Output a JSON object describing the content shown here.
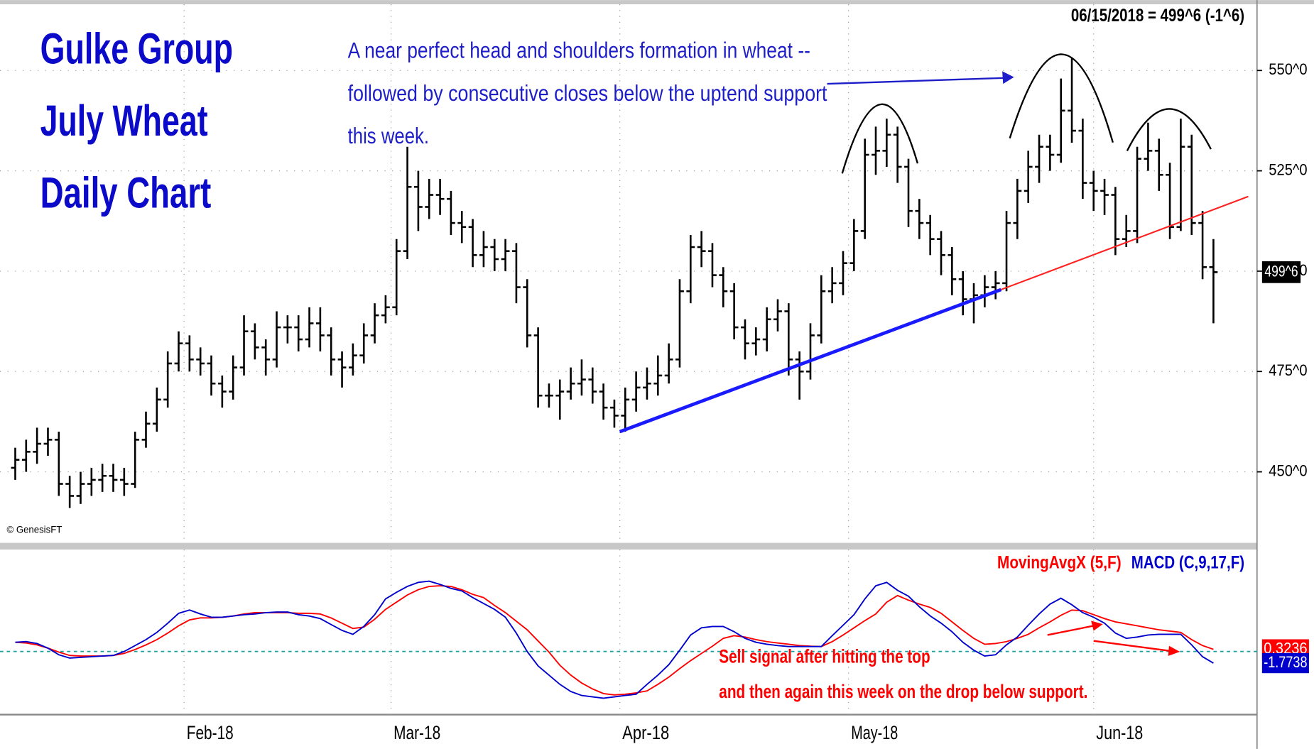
{
  "chart_data": [
    {
      "type": "ohlc",
      "title": [
        "Gulke Group",
        "July Wheat",
        "Daily Chart"
      ],
      "header": "06/15/2018 = 499^6 (-1^6)",
      "annotation": [
        "A near perfect head and shoulders formation in wheat --",
        "followed by consecutive closes below the uptend support",
        "this week."
      ],
      "credit": "© GenesisFT",
      "color": "#000000",
      "xlim": [
        -1.4,
        114
      ],
      "ylim": [
        432.3,
        566.5
      ],
      "yticks": [
        {
          "value": 450,
          "label": "450^0"
        },
        {
          "value": 475,
          "label": "475^0"
        },
        {
          "value": 500,
          "label": "500^0"
        },
        {
          "value": 525,
          "label": "525^0"
        },
        {
          "value": 550,
          "label": "550^0"
        }
      ],
      "grid": true,
      "last": {
        "value": 499.75,
        "label": "499^6"
      },
      "open": [
        451,
        453,
        455,
        457,
        458,
        447,
        444,
        447,
        448,
        449,
        448,
        447,
        458,
        462,
        468,
        477,
        482,
        478,
        477,
        472,
        470,
        476,
        485,
        481,
        478,
        486,
        486,
        483,
        487,
        484,
        478,
        476,
        479,
        484,
        489,
        491,
        505,
        521,
        516,
        519,
        518,
        512,
        511,
        504,
        506,
        503,
        505,
        496,
        484,
        469,
        469,
        470,
        472,
        473,
        470,
        466,
        464,
        468,
        471,
        472,
        474,
        478,
        495,
        506,
        505,
        499,
        495,
        486,
        482,
        483,
        488,
        490,
        478,
        475,
        484,
        495,
        497,
        502,
        510,
        529,
        530,
        534,
        526,
        515,
        512,
        508,
        504,
        498,
        493,
        494,
        496,
        497,
        512,
        520,
        526,
        531,
        529,
        540,
        535,
        522,
        520,
        519,
        508,
        510,
        528,
        530,
        524,
        511,
        531,
        512,
        501
      ],
      "high": [
        456,
        458,
        461,
        461,
        460,
        449,
        450,
        451,
        452,
        452,
        451,
        460,
        465,
        471,
        480,
        485,
        484,
        481,
        479,
        474,
        479,
        489,
        487,
        483,
        490,
        489,
        489,
        491,
        491,
        486,
        480,
        482,
        487,
        492,
        494,
        508,
        531,
        525,
        523,
        523,
        520,
        515,
        513,
        510,
        508,
        508,
        507,
        498,
        486,
        472,
        473,
        476,
        478,
        476,
        472,
        468,
        471,
        475,
        476,
        479,
        482,
        498,
        509,
        510,
        507,
        501,
        497,
        488,
        486,
        491,
        493,
        492,
        480,
        487,
        499,
        501,
        505,
        513,
        533,
        536,
        538,
        536,
        528,
        518,
        514,
        510,
        506,
        500,
        497,
        499,
        500,
        515,
        523,
        530,
        534,
        534,
        548,
        553,
        538,
        525,
        523,
        521,
        514,
        531,
        537,
        533,
        527,
        538,
        534,
        515,
        508
      ],
      "low": [
        448,
        450,
        452,
        454,
        444,
        441,
        442,
        444,
        445,
        445,
        444,
        446,
        456,
        460,
        466,
        475,
        475,
        474,
        469,
        466,
        468,
        474,
        478,
        474,
        476,
        482,
        480,
        481,
        480,
        474,
        471,
        474,
        477,
        482,
        487,
        489,
        503,
        510,
        513,
        514,
        509,
        507,
        501,
        501,
        500,
        500,
        492,
        481,
        466,
        466,
        463,
        468,
        469,
        467,
        463,
        461,
        460,
        465,
        468,
        469,
        472,
        476,
        492,
        501,
        496,
        491,
        483,
        478,
        479,
        480,
        485,
        474,
        468,
        473,
        482,
        492,
        494,
        500,
        508,
        524,
        526,
        522,
        511,
        508,
        504,
        499,
        494,
        489,
        487,
        491,
        493,
        495,
        508,
        517,
        522,
        525,
        527,
        532,
        518,
        515,
        514,
        504,
        506,
        507,
        525,
        520,
        508,
        510,
        509,
        498,
        487
      ],
      "close": [
        453,
        455,
        457,
        458,
        447,
        444,
        447,
        448,
        449,
        448,
        447,
        458,
        462,
        468,
        477,
        482,
        478,
        477,
        472,
        470,
        476,
        485,
        481,
        478,
        486,
        486,
        483,
        487,
        484,
        478,
        476,
        479,
        484,
        489,
        491,
        505,
        521,
        516,
        519,
        518,
        512,
        511,
        504,
        506,
        503,
        505,
        496,
        484,
        469,
        469,
        470,
        472,
        473,
        470,
        466,
        464,
        468,
        471,
        472,
        474,
        478,
        495,
        506,
        505,
        499,
        495,
        486,
        482,
        483,
        488,
        490,
        478,
        475,
        484,
        495,
        497,
        502,
        510,
        529,
        530,
        534,
        526,
        515,
        512,
        508,
        504,
        498,
        493,
        494,
        496,
        497,
        512,
        520,
        526,
        531,
        529,
        540,
        535,
        522,
        520,
        519,
        508,
        510,
        528,
        530,
        524,
        511,
        531,
        512,
        501,
        499.75
      ],
      "trendlines": [
        {
          "color": "#1a1aff",
          "points": [
            [
              55.5,
              460
            ],
            [
              90.5,
              495.4
            ]
          ]
        },
        {
          "color": "#ff2020",
          "points": [
            [
              90.5,
              495.4
            ],
            [
              113.2,
              518.6
            ]
          ]
        }
      ]
    },
    {
      "type": "line",
      "legend": [
        "MovingAvgX (5,F)",
        "MACD (C,9,17,F)"
      ],
      "notes": [
        "Sell signal after hitting the top",
        "and then again this week on the drop below support."
      ],
      "xlim": [
        -1.4,
        114
      ],
      "ylim": [
        -9.6,
        15.5
      ],
      "zero": 0,
      "xticks": [
        {
          "value": 15.5,
          "label": "Feb-18"
        },
        {
          "value": 34.5,
          "label": "Mar-18"
        },
        {
          "value": 55.5,
          "label": "Apr-18"
        },
        {
          "value": 76.5,
          "label": "May-18"
        },
        {
          "value": 99,
          "label": "Jun-18"
        }
      ],
      "series": [
        {
          "name": "MovingAvgX (5,F)",
          "color": "#ff0000",
          "end_label": "0.3236",
          "values": [
            1.4,
            1.3,
            1.0,
            0.5,
            -0.1,
            -0.6,
            -0.7,
            -0.7,
            -0.7,
            -0.6,
            -0.3,
            0.3,
            1.0,
            1.8,
            2.8,
            3.9,
            4.8,
            5.1,
            5.1,
            5.2,
            5.4,
            5.7,
            5.9,
            5.9,
            5.9,
            5.9,
            5.8,
            5.8,
            5.7,
            5.1,
            4.3,
            3.5,
            3.7,
            4.9,
            6.4,
            7.5,
            8.6,
            9.4,
            9.9,
            10.0,
            9.9,
            9.4,
            8.7,
            8.2,
            7.0,
            5.9,
            4.6,
            3.3,
            1.6,
            -0.1,
            -2.1,
            -3.6,
            -4.8,
            -5.7,
            -6.4,
            -6.6,
            -6.5,
            -6.3,
            -6.0,
            -5.0,
            -3.9,
            -2.6,
            -1.4,
            -0.3,
            0.8,
            2.0,
            2.4,
            2.2,
            1.8,
            1.5,
            1.3,
            1.1,
            0.9,
            0.8,
            0.75,
            1.5,
            2.5,
            3.6,
            4.7,
            5.7,
            7.5,
            8.5,
            7.8,
            7.2,
            6.7,
            5.8,
            4.5,
            3.2,
            2.0,
            1.1,
            1.2,
            1.5,
            2.0,
            2.6,
            3.6,
            4.5,
            5.5,
            6.3,
            6.2,
            5.6,
            5.0,
            4.5,
            4.2,
            3.9,
            3.6,
            3.3,
            3.1,
            2.9,
            1.8,
            0.9,
            0.3236
          ]
        },
        {
          "name": "MACD (C,9,17,F)",
          "color": "#0000cc",
          "end_label": "-1.7738",
          "values": [
            1.4,
            1.5,
            1.2,
            0.5,
            -0.5,
            -1.0,
            -0.9,
            -0.8,
            -0.7,
            -0.6,
            0.0,
            0.9,
            1.8,
            2.9,
            4.3,
            5.8,
            6.3,
            5.7,
            5.2,
            5.2,
            5.4,
            5.6,
            5.7,
            5.9,
            6.0,
            6.0,
            5.6,
            5.4,
            5.0,
            4.1,
            3.2,
            2.6,
            3.8,
            5.6,
            8.0,
            9.0,
            9.9,
            10.5,
            10.7,
            10.2,
            9.6,
            9.2,
            8.2,
            7.3,
            6.4,
            5.2,
            2.8,
            0.0,
            -2.2,
            -3.6,
            -5.0,
            -6.1,
            -6.7,
            -6.9,
            -7.1,
            -6.9,
            -6.7,
            -6.5,
            -5.0,
            -3.6,
            -2.0,
            0.2,
            2.5,
            3.6,
            3.8,
            3.8,
            3.0,
            2.0,
            1.4,
            1.1,
            0.9,
            0.75,
            0.75,
            0.75,
            0.75,
            2.4,
            4.0,
            5.6,
            8.0,
            10.0,
            10.5,
            9.3,
            8.4,
            6.8,
            5.4,
            4.3,
            3.0,
            1.4,
            0.2,
            -0.7,
            -0.5,
            1.0,
            2.2,
            4.0,
            5.7,
            7.2,
            8.1,
            7.1,
            5.9,
            5.2,
            4.3,
            2.8,
            2.0,
            2.2,
            2.5,
            2.6,
            2.6,
            2.6,
            1.0,
            -0.8,
            -1.7738
          ]
        }
      ]
    }
  ]
}
